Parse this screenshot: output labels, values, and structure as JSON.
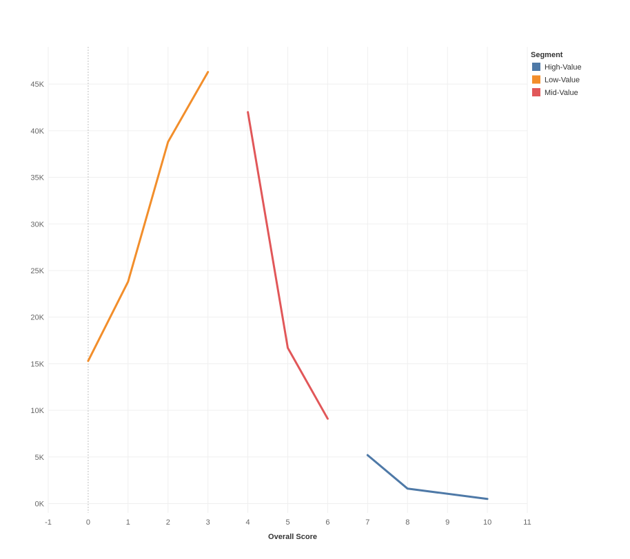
{
  "chart_data": {
    "type": "line",
    "xlabel": "Overall Score",
    "ylabel": "",
    "xlim": [
      -1,
      11
    ],
    "ylim": [
      -1000,
      49000
    ],
    "x_ticks": [
      -1,
      0,
      1,
      2,
      3,
      4,
      5,
      6,
      7,
      8,
      9,
      10,
      11
    ],
    "x_tick_labels": [
      "-1",
      "0",
      "1",
      "2",
      "3",
      "4",
      "5",
      "6",
      "7",
      "8",
      "9",
      "10",
      "11"
    ],
    "y_ticks": [
      0,
      5000,
      10000,
      15000,
      20000,
      25000,
      30000,
      35000,
      40000,
      45000
    ],
    "y_tick_labels": [
      "0K",
      "5K",
      "10K",
      "15K",
      "20K",
      "25K",
      "30K",
      "35K",
      "40K",
      "45K"
    ],
    "grid": true,
    "legend": {
      "title": "Segment",
      "placement": "top-right"
    },
    "series": [
      {
        "name": "High-Value",
        "color": "#4e79a7",
        "x": [
          7,
          8,
          10
        ],
        "y": [
          5200,
          1600,
          500
        ]
      },
      {
        "name": "Low-Value",
        "color": "#f28e2b",
        "x": [
          0,
          1,
          2,
          3
        ],
        "y": [
          15300,
          23800,
          38800,
          46300
        ]
      },
      {
        "name": "Mid-Value",
        "color": "#e15759",
        "x": [
          4,
          5,
          6
        ],
        "y": [
          42000,
          16700,
          9100
        ]
      }
    ]
  }
}
